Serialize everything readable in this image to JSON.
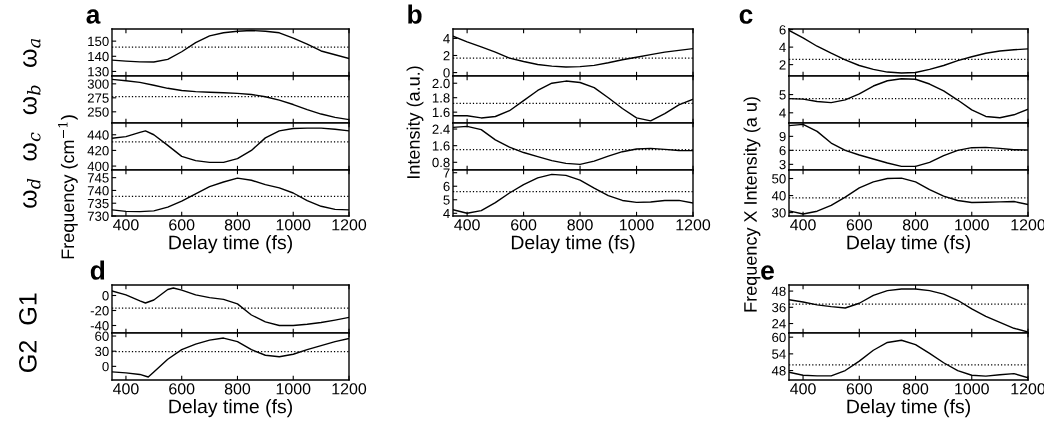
{
  "chart_data": [
    {
      "type": "line",
      "title": "a",
      "ylabel": "ω$_{a}$",
      "annotations": [
        "Frequency (cm$^{−1}$)"
      ],
      "tick_labels": "y",
      "x": [
        350,
        400,
        450,
        500,
        550,
        600,
        650,
        700,
        750,
        800,
        850,
        900,
        950,
        1000,
        1050,
        1100,
        1150,
        1200
      ],
      "series": [
        {
          "color": "#000000",
          "values": [
            137.5,
            136.8,
            136.3,
            136.2,
            138,
            143,
            149,
            153.5,
            155.5,
            156.5,
            157,
            156.5,
            155.5,
            152,
            148,
            143.5,
            141,
            138.5
          ]
        }
      ],
      "xlim": [
        350,
        1200
      ],
      "xticks": [
        400,
        600,
        800,
        1000,
        1200
      ],
      "ylim": [
        127,
        158
      ],
      "yticks": [
        130,
        140,
        150
      ],
      "ref_lines": [
        {
          "axis": "y",
          "value": 146,
          "color": "#000000",
          "line_style": "dotted"
        }
      ]
    },
    {
      "type": "line",
      "ylabel": "ω$_{b}$",
      "tick_labels": "y",
      "x": [
        350,
        400,
        450,
        500,
        550,
        600,
        650,
        700,
        750,
        800,
        850,
        900,
        950,
        1000,
        1050,
        1100,
        1150,
        1200
      ],
      "series": [
        {
          "color": "#000000",
          "values": [
            308,
            305.5,
            302.5,
            297.5,
            292,
            288,
            286,
            285,
            284,
            283,
            281,
            277,
            271,
            263,
            254,
            246,
            240,
            236
          ]
        }
      ],
      "xlim": [
        350,
        1200
      ],
      "xticks": [
        400,
        600,
        800,
        1000,
        1200
      ],
      "ylim": [
        230,
        314
      ],
      "yticks": [
        250,
        275,
        300
      ],
      "ref_lines": [
        {
          "axis": "y",
          "value": 277,
          "color": "#000000",
          "line_style": "dotted"
        }
      ]
    },
    {
      "type": "line",
      "ylabel": "ω$_{c}$",
      "tick_labels": "y",
      "x": [
        350,
        400,
        450,
        470,
        500,
        550,
        600,
        650,
        700,
        750,
        800,
        850,
        900,
        950,
        1000,
        1050,
        1100,
        1150,
        1200
      ],
      "series": [
        {
          "color": "#000000",
          "values": [
            435.6,
            437.6,
            443,
            445,
            440,
            426.4,
            412.4,
            407,
            404.8,
            404.8,
            409.6,
            420,
            436,
            445,
            448,
            448.4,
            448.4,
            447,
            445
          ]
        }
      ],
      "xlim": [
        350,
        1200
      ],
      "xticks": [
        400,
        600,
        800,
        1000,
        1200
      ],
      "ylim": [
        395,
        455
      ],
      "yticks": [
        400,
        420,
        440
      ],
      "ref_lines": [
        {
          "axis": "y",
          "value": 431,
          "color": "#000000",
          "line_style": "dotted"
        }
      ]
    },
    {
      "type": "line",
      "ylabel": "ω$_{d}$",
      "xlabel": "Delay time (fs)",
      "x": [
        350,
        400,
        450,
        500,
        550,
        600,
        650,
        700,
        750,
        800,
        850,
        900,
        950,
        1000,
        1050,
        1100,
        1150,
        1200
      ],
      "series": [
        {
          "color": "#000000",
          "values": [
            732.4,
            731.8,
            731.7,
            732,
            733.5,
            735.8,
            738.7,
            741.5,
            743.3,
            744.8,
            744,
            742.3,
            741,
            739,
            736,
            733.8,
            732.6,
            732.4
          ]
        }
      ],
      "xlim": [
        350,
        1200
      ],
      "xticks": [
        400,
        600,
        800,
        1000,
        1200
      ],
      "ylim": [
        730,
        748
      ],
      "yticks": [
        730,
        735,
        740,
        745
      ],
      "ref_lines": [
        {
          "axis": "y",
          "value": 737.7,
          "color": "#000000",
          "line_style": "dotted"
        }
      ]
    },
    {
      "type": "line",
      "title": "b",
      "annotations": [
        "Intensity (a.u.)"
      ],
      "tick_labels": "y",
      "x": [
        350,
        400,
        450,
        500,
        550,
        600,
        650,
        700,
        750,
        800,
        850,
        900,
        950,
        1000,
        1050,
        1100,
        1150,
        1200
      ],
      "series": [
        {
          "color": "#000000",
          "values": [
            4.25,
            3.6,
            3,
            2.4,
            1.7,
            1.3,
            0.95,
            0.75,
            0.65,
            0.7,
            0.85,
            1.15,
            1.5,
            1.8,
            2.1,
            2.4,
            2.6,
            2.8
          ]
        }
      ],
      "xlim": [
        350,
        1200
      ],
      "xticks": [
        400,
        600,
        800,
        1000,
        1200
      ],
      "ylim": [
        -0.4,
        5.1
      ],
      "yticks": [
        0,
        2,
        4
      ],
      "ref_lines": [
        {
          "axis": "y",
          "value": 1.7,
          "color": "#000000",
          "line_style": "dotted"
        }
      ]
    },
    {
      "type": "line",
      "tick_labels": "y",
      "x": [
        350,
        400,
        450,
        500,
        550,
        600,
        650,
        700,
        750,
        800,
        850,
        900,
        950,
        1000,
        1050,
        1100,
        1150,
        1200
      ],
      "series": [
        {
          "color": "#000000",
          "values": [
            1.55,
            1.55,
            1.52,
            1.54,
            1.62,
            1.76,
            1.9,
            2.0,
            2.03,
            2.01,
            1.94,
            1.8,
            1.65,
            1.52,
            1.48,
            1.58,
            1.7,
            1.78
          ]
        }
      ],
      "xlim": [
        350,
        1200
      ],
      "xticks": [
        400,
        600,
        800,
        1000,
        1200
      ],
      "ylim": [
        1.45,
        2.1
      ],
      "yticks": [
        {
          "value": 1.6,
          "label": "1.6"
        },
        {
          "value": 1.8,
          "label": "1.8"
        },
        {
          "value": 2.0,
          "label": "2.0"
        }
      ],
      "ref_lines": [
        {
          "axis": "y",
          "value": 1.72,
          "color": "#000000",
          "line_style": "dotted"
        }
      ]
    },
    {
      "type": "line",
      "tick_labels": "y",
      "x": [
        350,
        400,
        450,
        500,
        550,
        600,
        650,
        700,
        750,
        800,
        850,
        900,
        950,
        1000,
        1050,
        1100,
        1150,
        1200
      ],
      "series": [
        {
          "color": "#000000",
          "values": [
            2.48,
            2.53,
            2.37,
            1.88,
            1.53,
            1.27,
            1.07,
            0.88,
            0.75,
            0.7,
            0.86,
            1.1,
            1.31,
            1.44,
            1.47,
            1.42,
            1.37,
            1.36
          ]
        }
      ],
      "xlim": [
        350,
        1200
      ],
      "xticks": [
        400,
        600,
        800,
        1000,
        1200
      ],
      "ylim": [
        0.43,
        2.69
      ],
      "yticks": [
        0.8,
        1.6,
        2.4
      ],
      "ref_lines": [
        {
          "axis": "y",
          "value": 1.41,
          "color": "#000000",
          "line_style": "dotted"
        }
      ]
    },
    {
      "type": "line",
      "xlabel": "Delay time (fs)",
      "x": [
        350,
        400,
        450,
        500,
        550,
        600,
        650,
        700,
        750,
        800,
        850,
        900,
        950,
        1000,
        1050,
        1100,
        1150,
        1200
      ],
      "series": [
        {
          "color": "#000000",
          "values": [
            4.26,
            4.0,
            4.2,
            4.79,
            5.5,
            6.12,
            6.62,
            6.88,
            6.8,
            6.45,
            5.86,
            5.31,
            4.95,
            4.81,
            4.83,
            4.95,
            4.95,
            4.76
          ]
        }
      ],
      "xlim": [
        350,
        1200
      ],
      "xticks": [
        400,
        600,
        800,
        1000,
        1200
      ],
      "ylim": [
        3.8,
        7.2
      ],
      "yticks": [
        4,
        5,
        6,
        7
      ],
      "ref_lines": [
        {
          "axis": "y",
          "value": 5.6,
          "color": "#000000",
          "line_style": "dotted"
        }
      ]
    },
    {
      "type": "line",
      "title": "c",
      "annotations": [
        "Frequency X Intensity (a u)"
      ],
      "tick_labels": "y",
      "x": [
        350,
        400,
        450,
        500,
        550,
        600,
        650,
        700,
        750,
        800,
        850,
        900,
        950,
        1000,
        1050,
        1100,
        1150,
        1200
      ],
      "series": [
        {
          "color": "#000000",
          "values": [
            5.9,
            5.05,
            4.1,
            3.3,
            2.55,
            1.9,
            1.45,
            1.15,
            1.05,
            1.1,
            1.45,
            1.9,
            2.45,
            2.9,
            3.3,
            3.55,
            3.7,
            3.8
          ]
        }
      ],
      "xlim": [
        350,
        1200
      ],
      "xticks": [
        400,
        600,
        800,
        1000,
        1200
      ],
      "ylim": [
        0.7,
        6.07
      ],
      "yticks": [
        2,
        4,
        6
      ],
      "ref_lines": [
        {
          "axis": "y",
          "value": 2.6,
          "color": "#000000",
          "line_style": "dotted"
        }
      ]
    },
    {
      "type": "line",
      "tick_labels": "y",
      "x": [
        350,
        400,
        450,
        500,
        550,
        600,
        650,
        700,
        750,
        800,
        850,
        900,
        950,
        1000,
        1050,
        1100,
        1150,
        1200
      ],
      "series": [
        {
          "color": "#000000",
          "values": [
            4.78,
            4.75,
            4.62,
            4.56,
            4.71,
            5.04,
            5.47,
            5.76,
            5.87,
            5.84,
            5.58,
            5.2,
            4.7,
            4.16,
            3.8,
            3.73,
            3.89,
            4.2
          ]
        }
      ],
      "xlim": [
        350,
        1200
      ],
      "xticks": [
        400,
        600,
        800,
        1000,
        1200
      ],
      "ylim": [
        3.44,
        6.02
      ],
      "yticks": [
        4,
        5
      ],
      "ref_lines": [
        {
          "axis": "y",
          "value": 4.78,
          "color": "#000000",
          "line_style": "dotted"
        }
      ]
    },
    {
      "type": "line",
      "tick_labels": "y",
      "x": [
        350,
        400,
        450,
        500,
        550,
        600,
        650,
        700,
        750,
        800,
        850,
        900,
        950,
        1000,
        1050,
        1100,
        1150,
        1200
      ],
      "series": [
        {
          "color": "#000000",
          "values": [
            11.3,
            11.57,
            10.07,
            7.57,
            6,
            5,
            4.14,
            3.29,
            2.57,
            2.57,
            3.43,
            4.86,
            6,
            6.57,
            6.64,
            6.43,
            6.14,
            6.07
          ]
        }
      ],
      "xlim": [
        350,
        1200
      ],
      "xticks": [
        400,
        600,
        800,
        1000,
        1200
      ],
      "ylim": [
        1.79,
        11.86
      ],
      "yticks": [
        3,
        6,
        9
      ],
      "ref_lines": [
        {
          "axis": "y",
          "value": 6,
          "color": "#000000",
          "line_style": "dotted"
        }
      ]
    },
    {
      "type": "line",
      "xlabel": "Delay time (fs)",
      "x": [
        350,
        400,
        450,
        500,
        550,
        600,
        650,
        700,
        750,
        800,
        850,
        900,
        950,
        1000,
        1050,
        1100,
        1150,
        1200
      ],
      "series": [
        {
          "color": "#000000",
          "values": [
            31,
            29.2,
            30.8,
            34.2,
            39.1,
            44.5,
            48,
            50,
            50.2,
            48,
            43.5,
            39.7,
            37.1,
            35.9,
            36.1,
            36.3,
            36.5,
            34.7
          ]
        }
      ],
      "xlim": [
        350,
        1200
      ],
      "xticks": [
        400,
        600,
        800,
        1000,
        1200
      ],
      "ylim": [
        28,
        55
      ],
      "yticks": [
        30,
        40,
        50
      ],
      "ref_lines": [
        {
          "axis": "y",
          "value": 38.6,
          "color": "#000000",
          "line_style": "dotted"
        }
      ]
    },
    {
      "type": "line",
      "title": "d",
      "ylabel": "G1",
      "tick_labels": "y",
      "x": [
        350,
        400,
        450,
        470,
        500,
        550,
        570,
        600,
        650,
        700,
        750,
        800,
        850,
        900,
        950,
        1000,
        1050,
        1100,
        1150,
        1200
      ],
      "series": [
        {
          "color": "#000000",
          "values": [
            6,
            0.8,
            -7.2,
            -10,
            -6,
            8,
            10,
            7.2,
            0.8,
            -2.8,
            -5.2,
            -11.2,
            -26,
            -35.2,
            -40,
            -40,
            -38.4,
            -36,
            -32.8,
            -29.2
          ]
        }
      ],
      "xlim": [
        350,
        1200
      ],
      "xticks": [
        400,
        600,
        800,
        1000,
        1200
      ],
      "ylim": [
        -50,
        14
      ],
      "yticks": [
        -40,
        -20,
        0
      ],
      "ref_lines": [
        {
          "axis": "y",
          "value": -16.8,
          "color": "#000000",
          "line_style": "dotted"
        }
      ]
    },
    {
      "type": "line",
      "ylabel": "G2",
      "xlabel": "Delay time (fs)",
      "x": [
        350,
        400,
        450,
        480,
        500,
        550,
        600,
        650,
        700,
        750,
        800,
        850,
        900,
        950,
        1000,
        1050,
        1100,
        1150,
        1200
      ],
      "series": [
        {
          "color": "#000000",
          "values": [
            -11,
            -13,
            -16,
            -21,
            -11,
            14,
            33,
            44,
            52,
            56,
            49,
            33,
            22,
            19,
            24,
            33,
            41,
            49,
            55
          ]
        }
      ],
      "xlim": [
        350,
        1200
      ],
      "xticks": [
        400,
        600,
        800,
        1000,
        1200
      ],
      "ylim": [
        -27,
        66
      ],
      "yticks": [
        0,
        30,
        60
      ],
      "ref_lines": [
        {
          "axis": "y",
          "value": 29,
          "color": "#000000",
          "line_style": "dotted"
        }
      ]
    },
    {
      "type": "line",
      "title": "e",
      "tick_labels": "y",
      "x": [
        350,
        400,
        450,
        500,
        550,
        600,
        650,
        700,
        750,
        800,
        850,
        900,
        950,
        1000,
        1050,
        1100,
        1150,
        1200
      ],
      "series": [
        {
          "color": "#000000",
          "values": [
            41.6,
            39.9,
            37.8,
            36.5,
            35.5,
            39,
            44.8,
            48.3,
            49.5,
            49.5,
            48.3,
            45.7,
            41.2,
            34.8,
            29.3,
            24.8,
            20.5,
            17.7
          ]
        }
      ],
      "xlim": [
        350,
        1200
      ],
      "xticks": [
        400,
        600,
        800,
        1000,
        1200
      ],
      "ylim": [
        17,
        52.5
      ],
      "yticks": [
        24,
        36,
        48
      ],
      "ref_lines": [
        {
          "axis": "y",
          "value": 38.3,
          "color": "#000000",
          "line_style": "dotted"
        }
      ]
    },
    {
      "type": "line",
      "xlabel": "Delay time (fs)",
      "x": [
        350,
        400,
        450,
        500,
        550,
        600,
        650,
        700,
        750,
        800,
        850,
        900,
        950,
        1000,
        1050,
        1100,
        1150,
        1200
      ],
      "series": [
        {
          "color": "#000000",
          "values": [
            47.4,
            46.3,
            46.1,
            46.1,
            48,
            51.4,
            55.3,
            58.1,
            58.9,
            57.3,
            54.2,
            50.8,
            48,
            46.3,
            46,
            46.5,
            46.9,
            45.4
          ]
        }
      ],
      "xlim": [
        350,
        1200
      ],
      "xticks": [
        400,
        600,
        800,
        1000,
        1200
      ],
      "ylim": [
        44.6,
        61.5
      ],
      "yticks": [
        48,
        54,
        60
      ],
      "ref_lines": [
        {
          "axis": "y",
          "value": 50,
          "color": "#000000",
          "line_style": "dotted"
        }
      ]
    }
  ]
}
